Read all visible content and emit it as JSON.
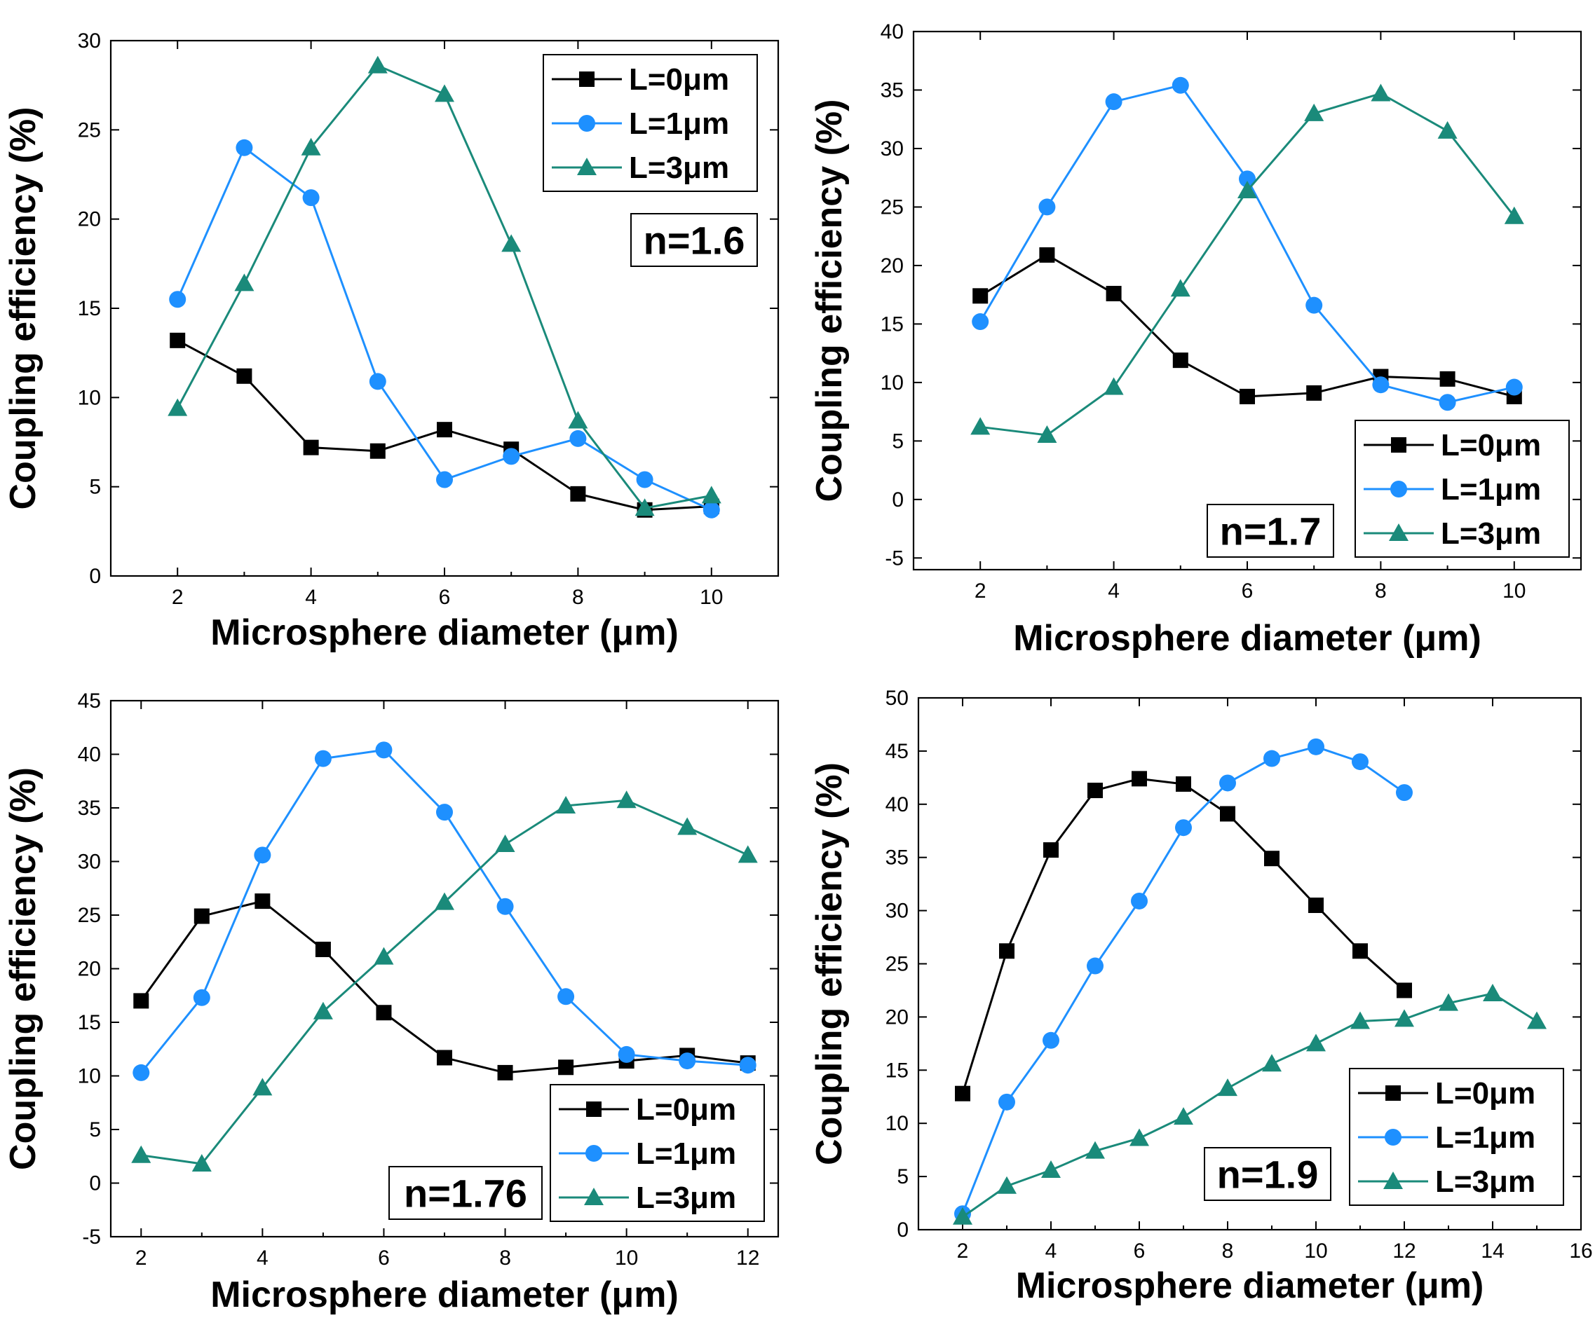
{
  "chart_data": [
    {
      "type": "line",
      "annotation": "n=1.6",
      "xlabel": "Microsphere diameter (μm)",
      "ylabel": "Coupling efficiency (%)",
      "xlim": [
        1,
        11
      ],
      "ylim": [
        0,
        30
      ],
      "xticks": [
        2,
        4,
        6,
        8,
        10
      ],
      "yticks": [
        0,
        5,
        10,
        15,
        20,
        25,
        30
      ],
      "legend_position": "top-right",
      "annotation_position": "right",
      "series": [
        {
          "name": "L=0μm",
          "color": "#000000",
          "marker": "square",
          "x": [
            2,
            3,
            4,
            5,
            6,
            7,
            8,
            9,
            10
          ],
          "values": [
            13.2,
            11.2,
            7.2,
            7.0,
            8.2,
            7.1,
            4.6,
            3.7,
            3.9
          ]
        },
        {
          "name": "L=1μm",
          "color": "#1E90FF",
          "marker": "circle",
          "x": [
            2,
            3,
            4,
            5,
            6,
            7,
            8,
            9,
            10
          ],
          "values": [
            15.5,
            24.0,
            21.2,
            10.9,
            5.4,
            6.7,
            7.7,
            5.4,
            3.7
          ]
        },
        {
          "name": "L=3μm",
          "color": "#1A8A7A",
          "marker": "triangle",
          "x": [
            2,
            3,
            4,
            5,
            6,
            7,
            8,
            9,
            10
          ],
          "values": [
            9.4,
            16.4,
            24.0,
            28.6,
            27.0,
            18.6,
            8.7,
            3.8,
            4.5
          ]
        }
      ]
    },
    {
      "type": "line",
      "annotation": "n=1.7",
      "xlabel": "Microsphere diameter (μm)",
      "ylabel": "Coupling efficiency (%)",
      "xlim": [
        1,
        11
      ],
      "ylim": [
        -6,
        40
      ],
      "xticks": [
        2,
        4,
        6,
        8,
        10
      ],
      "yticks": [
        -5,
        0,
        5,
        10,
        15,
        20,
        25,
        30,
        35,
        40
      ],
      "legend_position": "bottom-right",
      "annotation_position": "bottom",
      "series": [
        {
          "name": "L=0μm",
          "color": "#000000",
          "marker": "square",
          "x": [
            2,
            3,
            4,
            5,
            6,
            7,
            8,
            9,
            10
          ],
          "values": [
            17.4,
            20.9,
            17.6,
            11.9,
            8.8,
            9.1,
            10.5,
            10.3,
            8.8
          ]
        },
        {
          "name": "L=1μm",
          "color": "#1E90FF",
          "marker": "circle",
          "x": [
            2,
            3,
            4,
            5,
            6,
            7,
            8,
            9,
            10
          ],
          "values": [
            15.2,
            25.0,
            34.0,
            35.4,
            27.4,
            16.6,
            9.8,
            8.3,
            9.6
          ]
        },
        {
          "name": "L=3μm",
          "color": "#1A8A7A",
          "marker": "triangle",
          "x": [
            2,
            3,
            4,
            5,
            6,
            7,
            8,
            9,
            10
          ],
          "values": [
            6.2,
            5.5,
            9.6,
            18.0,
            26.4,
            33.0,
            34.7,
            31.5,
            24.2
          ]
        }
      ]
    },
    {
      "type": "line",
      "annotation": "n=1.76",
      "xlabel": "Microsphere diameter (μm)",
      "ylabel": "Coupling efficiency (%)",
      "xlim": [
        1.5,
        12.5
      ],
      "ylim": [
        -5,
        45
      ],
      "xticks": [
        2,
        4,
        6,
        8,
        10,
        12
      ],
      "yticks": [
        -5,
        0,
        5,
        10,
        15,
        20,
        25,
        30,
        35,
        40,
        45
      ],
      "legend_position": "bottom-right",
      "annotation_position": "bottom",
      "series": [
        {
          "name": "L=0μm",
          "color": "#000000",
          "marker": "square",
          "x": [
            2,
            3,
            4,
            5,
            6,
            7,
            8,
            9,
            10,
            11,
            12
          ],
          "values": [
            17.0,
            24.9,
            26.3,
            21.8,
            15.9,
            11.7,
            10.3,
            10.8,
            11.4,
            11.9,
            11.2
          ]
        },
        {
          "name": "L=1μm",
          "color": "#1E90FF",
          "marker": "circle",
          "x": [
            2,
            3,
            4,
            5,
            6,
            7,
            8,
            9,
            10,
            11,
            12
          ],
          "values": [
            10.3,
            17.3,
            30.6,
            39.6,
            40.4,
            34.6,
            25.8,
            17.4,
            12.0,
            11.4,
            11.0
          ]
        },
        {
          "name": "L=3μm",
          "color": "#1A8A7A",
          "marker": "triangle",
          "x": [
            2,
            3,
            4,
            5,
            6,
            7,
            8,
            9,
            10,
            11,
            12
          ],
          "values": [
            2.6,
            1.8,
            8.9,
            16.0,
            21.1,
            26.2,
            31.6,
            35.2,
            35.7,
            33.2,
            30.6
          ]
        }
      ]
    },
    {
      "type": "line",
      "annotation": "n=1.9",
      "xlabel": "Microsphere diameter (μm)",
      "ylabel": "Coupling efficiency (%)",
      "xlim": [
        1,
        16
      ],
      "ylim": [
        0,
        50
      ],
      "xticks": [
        2,
        4,
        6,
        8,
        10,
        12,
        14,
        16
      ],
      "yticks": [
        0,
        5,
        10,
        15,
        20,
        25,
        30,
        35,
        40,
        45,
        50
      ],
      "legend_position": "bottom-right",
      "annotation_position": "bottom",
      "series": [
        {
          "name": "L=0μm",
          "color": "#000000",
          "marker": "square",
          "x": [
            2,
            3,
            4,
            5,
            6,
            7,
            8,
            9,
            10,
            11,
            12
          ],
          "values": [
            12.8,
            26.2,
            35.7,
            41.3,
            42.4,
            41.9,
            39.1,
            34.9,
            30.5,
            26.2,
            22.5
          ]
        },
        {
          "name": "L=1μm",
          "color": "#1E90FF",
          "marker": "circle",
          "x": [
            2,
            3,
            4,
            5,
            6,
            7,
            8,
            9,
            10,
            11,
            12
          ],
          "values": [
            1.5,
            12.0,
            17.8,
            24.8,
            30.9,
            37.8,
            42.0,
            44.3,
            45.4,
            44.0,
            41.1
          ]
        },
        {
          "name": "L=3μm",
          "color": "#1A8A7A",
          "marker": "triangle",
          "x": [
            2,
            3,
            4,
            5,
            6,
            7,
            8,
            9,
            10,
            11,
            12,
            13,
            14,
            15
          ],
          "values": [
            1.2,
            4.1,
            5.6,
            7.4,
            8.6,
            10.6,
            13.3,
            15.6,
            17.5,
            19.6,
            19.8,
            21.3,
            22.2,
            19.6
          ]
        }
      ]
    }
  ]
}
